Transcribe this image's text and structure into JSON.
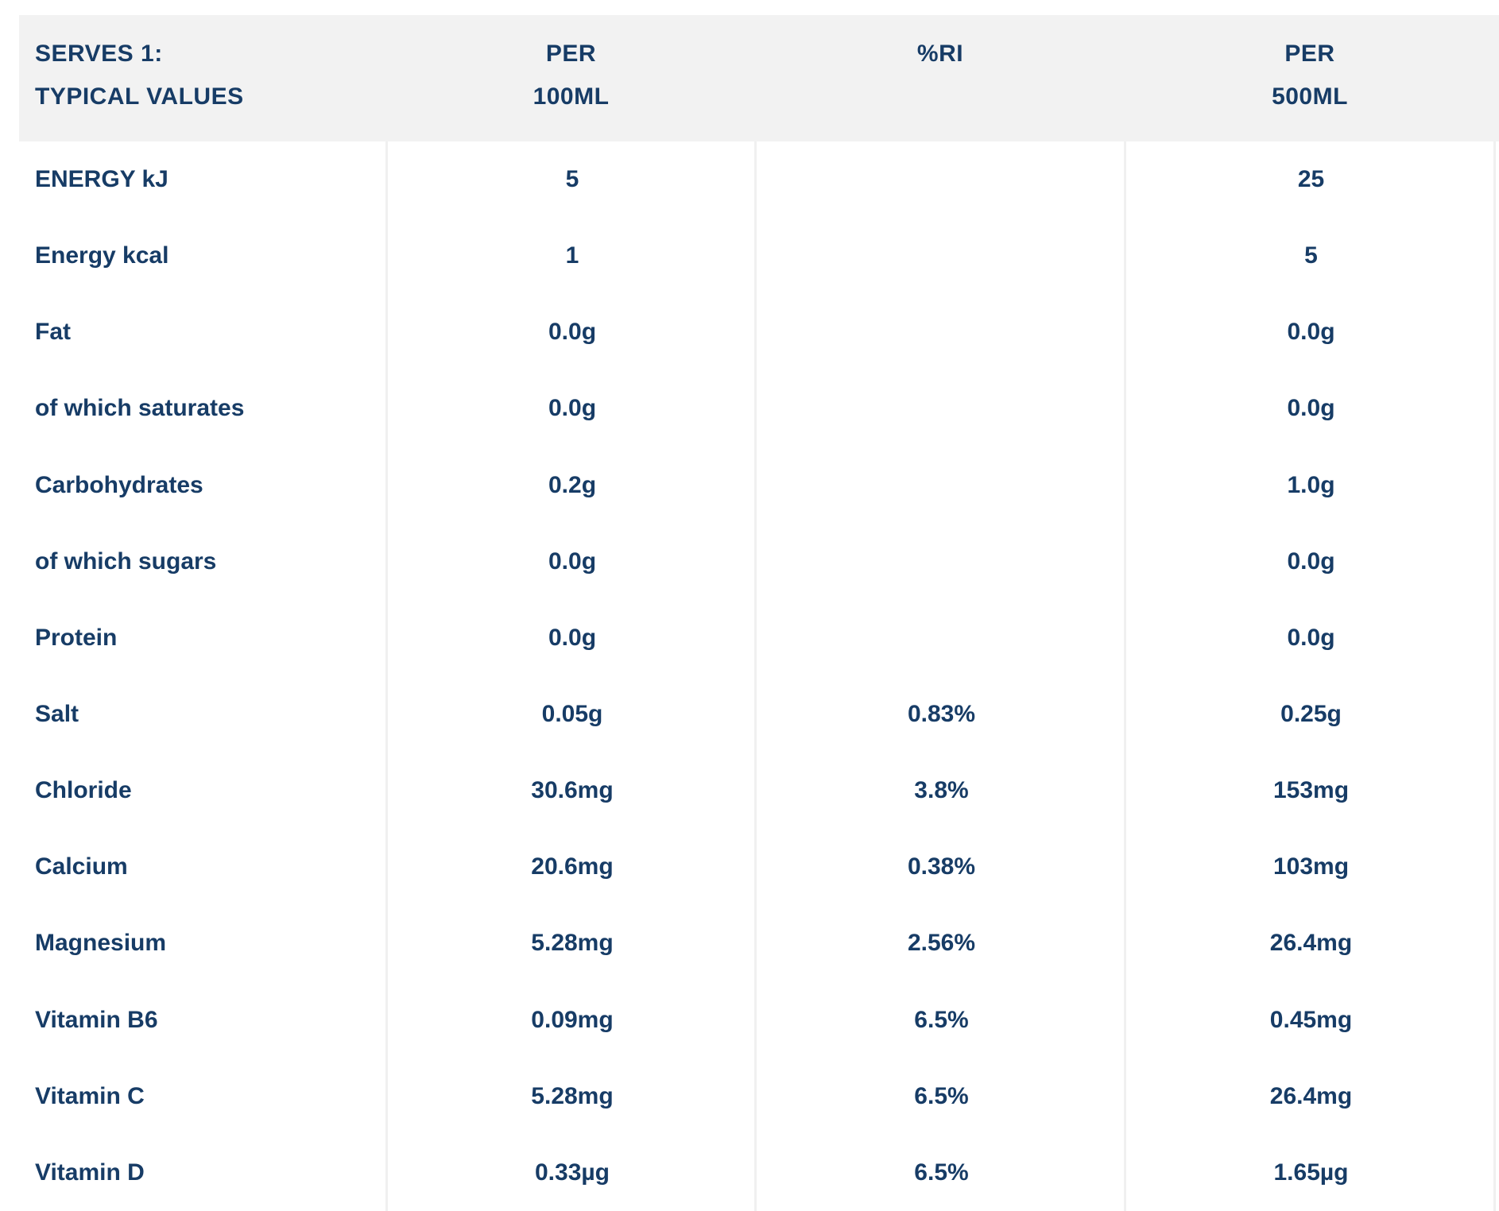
{
  "header": {
    "col1_line1": "SERVES 1:",
    "col1_line2": "TYPICAL VALUES",
    "col2_line1": "PER",
    "col2_line2": "100ML",
    "col3_line1": "%RI",
    "col4_line1": "PER",
    "col4_line2": "500ML"
  },
  "colors": {
    "text_navy": "#173c66",
    "header_background": "#f2f2f2",
    "divider": "#f0f0f0",
    "page_background": "#ffffff"
  },
  "chart_data": {
    "type": "table",
    "title": "SERVES 1: TYPICAL VALUES",
    "columns": [
      "SERVES 1: TYPICAL VALUES",
      "PER 100ML",
      "%RI",
      "PER 500ML"
    ],
    "rows": [
      {
        "label": "ENERGY kJ",
        "per_100ml": "5",
        "ri": "",
        "per_500ml": "25"
      },
      {
        "label": "Energy kcal",
        "per_100ml": "1",
        "ri": "",
        "per_500ml": "5"
      },
      {
        "label": "Fat",
        "per_100ml": "0.0g",
        "ri": "",
        "per_500ml": "0.0g"
      },
      {
        "label": "of which saturates",
        "per_100ml": "0.0g",
        "ri": "",
        "per_500ml": "0.0g"
      },
      {
        "label": "Carbohydrates",
        "per_100ml": "0.2g",
        "ri": "",
        "per_500ml": "1.0g"
      },
      {
        "label": "of which sugars",
        "per_100ml": "0.0g",
        "ri": "",
        "per_500ml": "0.0g"
      },
      {
        "label": "Protein",
        "per_100ml": "0.0g",
        "ri": "",
        "per_500ml": "0.0g"
      },
      {
        "label": "Salt",
        "per_100ml": "0.05g",
        "ri": "0.83%",
        "per_500ml": "0.25g"
      },
      {
        "label": "Chloride",
        "per_100ml": "30.6mg",
        "ri": "3.8%",
        "per_500ml": "153mg"
      },
      {
        "label": "Calcium",
        "per_100ml": "20.6mg",
        "ri": "0.38%",
        "per_500ml": "103mg"
      },
      {
        "label": "Magnesium",
        "per_100ml": "5.28mg",
        "ri": "2.56%",
        "per_500ml": "26.4mg"
      },
      {
        "label": "Vitamin B6",
        "per_100ml": "0.09mg",
        "ri": "6.5%",
        "per_500ml": "0.45mg"
      },
      {
        "label": "Vitamin C",
        "per_100ml": "5.28mg",
        "ri": "6.5%",
        "per_500ml": "26.4mg"
      },
      {
        "label": "Vitamin D",
        "per_100ml": "0.33µg",
        "ri": "6.5%",
        "per_500ml": "1.65µg"
      }
    ]
  }
}
